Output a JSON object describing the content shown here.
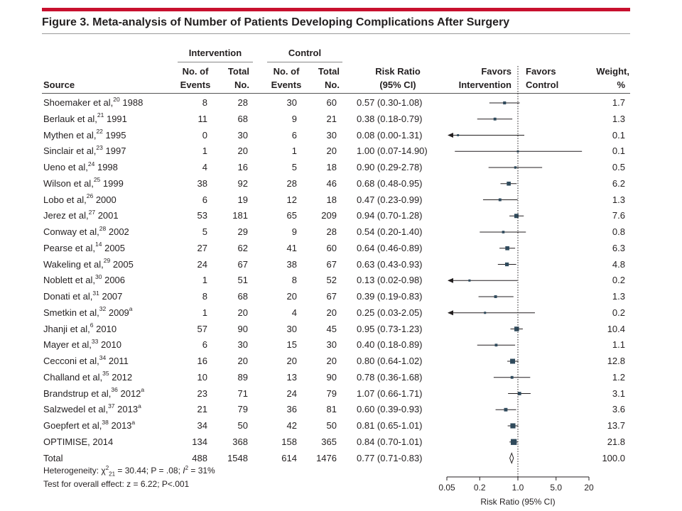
{
  "figure_title": "Figure 3. Meta-analysis of Number of Patients Developing Complications After Surgery",
  "header": {
    "intervention": "Intervention",
    "control": "Control",
    "source": "Source",
    "events_l1": "No. of",
    "events_l2": "Events",
    "total_l1": "Total",
    "total_l2": "No.",
    "rr_l1": "Risk Ratio",
    "rr_l2": "(95% CI)",
    "favors_l1": "Favors",
    "favors_int": "Intervention",
    "favors_ctrl": "Control",
    "weight_l1": "Weight,",
    "weight_l2": "%"
  },
  "footer": {
    "heterogeneity_prefix": "Heterogeneity: χ",
    "chi_sup": "2",
    "chi_sub": "21",
    "heterogeneity_mid": " = 30.44; P = .08; ",
    "i2_i": "I",
    "i2_sup": "2",
    "heterogeneity_end": " = 31%",
    "overall": "Test for overall effect: z = 6.22; P<.001"
  },
  "chart_data": {
    "type": "forest",
    "x_scale": "log",
    "xlim": [
      0.05,
      20
    ],
    "xticks": [
      0.05,
      0.2,
      1.0,
      5.0,
      20
    ],
    "xtick_labels": [
      "0.05",
      "0.2",
      "1.0",
      "5.0",
      "20"
    ],
    "xlabel": "Risk Ratio (95% CI)",
    "reference_line": 1.0,
    "studies": [
      {
        "name": "Shoemaker et al,",
        "ref": "20",
        "year": "1988",
        "sup2": "",
        "ie": "8",
        "it": "28",
        "ce": "30",
        "ct": "60",
        "rr_text": "0.57 (0.30-1.08)",
        "rr": 0.57,
        "lo": 0.3,
        "hi": 1.08,
        "weight": "1.7"
      },
      {
        "name": "Berlauk et al,",
        "ref": "21",
        "year": "1991",
        "sup2": "",
        "ie": "11",
        "it": "68",
        "ce": "9",
        "ct": "21",
        "rr_text": "0.38 (0.18-0.79)",
        "rr": 0.38,
        "lo": 0.18,
        "hi": 0.79,
        "weight": "1.3"
      },
      {
        "name": "Mythen et al,",
        "ref": "22",
        "year": "1995",
        "sup2": "",
        "ie": "0",
        "it": "30",
        "ce": "6",
        "ct": "30",
        "rr_text": "0.08 (0.00-1.31)",
        "rr": 0.08,
        "lo": 0.0,
        "hi": 1.31,
        "weight": "0.1"
      },
      {
        "name": "Sinclair et al,",
        "ref": "23",
        "year": "1997",
        "sup2": "",
        "ie": "1",
        "it": "20",
        "ce": "1",
        "ct": "20",
        "rr_text": "1.00 (0.07-14.90)",
        "rr": 1.0,
        "lo": 0.07,
        "hi": 14.9,
        "weight": "0.1"
      },
      {
        "name": "Ueno et al,",
        "ref": "24",
        "year": "1998",
        "sup2": "",
        "ie": "4",
        "it": "16",
        "ce": "5",
        "ct": "18",
        "rr_text": "0.90 (0.29-2.78)",
        "rr": 0.9,
        "lo": 0.29,
        "hi": 2.78,
        "weight": "0.5"
      },
      {
        "name": "Wilson et al,",
        "ref": "25",
        "year": "1999",
        "sup2": "",
        "ie": "38",
        "it": "92",
        "ce": "28",
        "ct": "46",
        "rr_text": "0.68 (0.48-0.95)",
        "rr": 0.68,
        "lo": 0.48,
        "hi": 0.95,
        "weight": "6.2"
      },
      {
        "name": "Lobo et al,",
        "ref": "26",
        "year": "2000",
        "sup2": "",
        "ie": "6",
        "it": "19",
        "ce": "12",
        "ct": "18",
        "rr_text": "0.47 (0.23-0.99)",
        "rr": 0.47,
        "lo": 0.23,
        "hi": 0.99,
        "weight": "1.3"
      },
      {
        "name": "Jerez et al,",
        "ref": "27",
        "year": "2001",
        "sup2": "",
        "ie": "53",
        "it": "181",
        "ce": "65",
        "ct": "209",
        "rr_text": "0.94 (0.70-1.28)",
        "rr": 0.94,
        "lo": 0.7,
        "hi": 1.28,
        "weight": "7.6"
      },
      {
        "name": "Conway et al,",
        "ref": "28",
        "year": "2002",
        "sup2": "",
        "ie": "5",
        "it": "29",
        "ce": "9",
        "ct": "28",
        "rr_text": "0.54 (0.20-1.40)",
        "rr": 0.54,
        "lo": 0.2,
        "hi": 1.4,
        "weight": "0.8"
      },
      {
        "name": "Pearse et al,",
        "ref": "14",
        "year": "2005",
        "sup2": "",
        "ie": "27",
        "it": "62",
        "ce": "41",
        "ct": "60",
        "rr_text": "0.64 (0.46-0.89)",
        "rr": 0.64,
        "lo": 0.46,
        "hi": 0.89,
        "weight": "6.3"
      },
      {
        "name": "Wakeling et al,",
        "ref": "29",
        "year": "2005",
        "sup2": "",
        "ie": "24",
        "it": "67",
        "ce": "38",
        "ct": "67",
        "rr_text": "0.63 (0.43-0.93)",
        "rr": 0.63,
        "lo": 0.43,
        "hi": 0.93,
        "weight": "4.8"
      },
      {
        "name": "Noblett et al,",
        "ref": "30",
        "year": "2006",
        "sup2": "",
        "ie": "1",
        "it": "51",
        "ce": "8",
        "ct": "52",
        "rr_text": "0.13 (0.02-0.98)",
        "rr": 0.13,
        "lo": 0.02,
        "hi": 0.98,
        "weight": "0.2"
      },
      {
        "name": "Donati et al,",
        "ref": "31",
        "year": "2007",
        "sup2": "",
        "ie": "8",
        "it": "68",
        "ce": "20",
        "ct": "67",
        "rr_text": "0.39 (0.19-0.83)",
        "rr": 0.39,
        "lo": 0.19,
        "hi": 0.83,
        "weight": "1.3"
      },
      {
        "name": "Smetkin et al,",
        "ref": "32",
        "year": "2009",
        "sup2": "a",
        "ie": "1",
        "it": "20",
        "ce": "4",
        "ct": "20",
        "rr_text": "0.25 (0.03-2.05)",
        "rr": 0.25,
        "lo": 0.03,
        "hi": 2.05,
        "weight": "0.2"
      },
      {
        "name": "Jhanji et al,",
        "ref": "6",
        "year": "2010",
        "sup2": "",
        "ie": "57",
        "it": "90",
        "ce": "30",
        "ct": "45",
        "rr_text": "0.95 (0.73-1.23)",
        "rr": 0.95,
        "lo": 0.73,
        "hi": 1.23,
        "weight": "10.4"
      },
      {
        "name": "Mayer et al,",
        "ref": "33",
        "year": "2010",
        "sup2": "",
        "ie": "6",
        "it": "30",
        "ce": "15",
        "ct": "30",
        "rr_text": "0.40 (0.18-0.89)",
        "rr": 0.4,
        "lo": 0.18,
        "hi": 0.89,
        "weight": "1.1"
      },
      {
        "name": "Cecconi et al,",
        "ref": "34",
        "year": "2011",
        "sup2": "",
        "ie": "16",
        "it": "20",
        "ce": "20",
        "ct": "20",
        "rr_text": "0.80 (0.64-1.02)",
        "rr": 0.8,
        "lo": 0.64,
        "hi": 1.02,
        "weight": "12.8"
      },
      {
        "name": "Challand et al,",
        "ref": "35",
        "year": "2012",
        "sup2": "",
        "ie": "10",
        "it": "89",
        "ce": "13",
        "ct": "90",
        "rr_text": "0.78 (0.36-1.68)",
        "rr": 0.78,
        "lo": 0.36,
        "hi": 1.68,
        "weight": "1.2"
      },
      {
        "name": "Brandstrup et al,",
        "ref": "36",
        "year": "2012",
        "sup2": "a",
        "ie": "23",
        "it": "71",
        "ce": "24",
        "ct": "79",
        "rr_text": "1.07 (0.66-1.71)",
        "rr": 1.07,
        "lo": 0.66,
        "hi": 1.71,
        "weight": "3.1"
      },
      {
        "name": "Salzwedel et al,",
        "ref": "37",
        "year": "2013",
        "sup2": "a",
        "ie": "21",
        "it": "79",
        "ce": "36",
        "ct": "81",
        "rr_text": "0.60 (0.39-0.93)",
        "rr": 0.6,
        "lo": 0.39,
        "hi": 0.93,
        "weight": "3.6"
      },
      {
        "name": "Goepfert et al,",
        "ref": "38",
        "year": "2013",
        "sup2": "a",
        "ie": "34",
        "it": "50",
        "ce": "42",
        "ct": "50",
        "rr_text": "0.81 (0.65-1.01)",
        "rr": 0.81,
        "lo": 0.65,
        "hi": 1.01,
        "weight": "13.7"
      },
      {
        "name": "OPTIMISE, 2014",
        "ref": "",
        "year": "",
        "sup2": "",
        "ie": "134",
        "it": "368",
        "ce": "158",
        "ct": "365",
        "rr_text": "0.84 (0.70-1.01)",
        "rr": 0.84,
        "lo": 0.7,
        "hi": 1.01,
        "weight": "21.8"
      }
    ],
    "total": {
      "name": "Total",
      "ie": "488",
      "it": "1548",
      "ce": "614",
      "ct": "1476",
      "rr_text": "0.77 (0.71-0.83)",
      "rr": 0.77,
      "lo": 0.71,
      "hi": 0.83,
      "weight": "100.0"
    }
  }
}
